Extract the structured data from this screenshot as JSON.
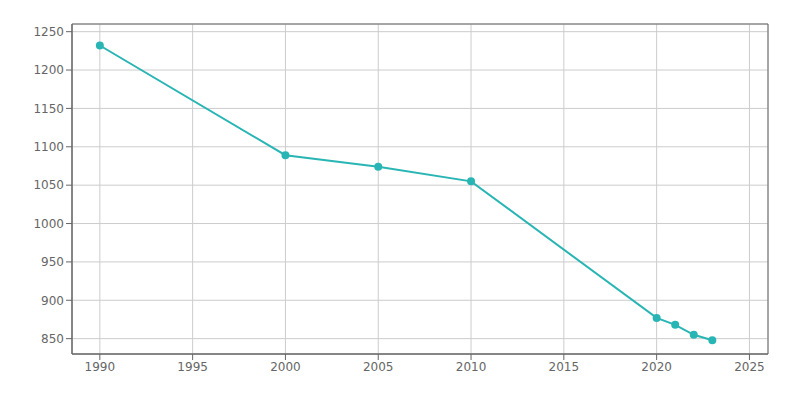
{
  "chart_data": {
    "type": "line",
    "x": [
      1990,
      2000,
      2005,
      2010,
      2020,
      2021,
      2022,
      2023
    ],
    "values": [
      1232,
      1089,
      1074,
      1055,
      877,
      868,
      855,
      848
    ],
    "color": "#2ab5b5",
    "marker": "circle",
    "xlim": [
      1988.5,
      2026
    ],
    "ylim": [
      830,
      1260
    ],
    "xticks": [
      1990,
      1995,
      2000,
      2005,
      2010,
      2015,
      2020,
      2025
    ],
    "yticks": [
      850,
      900,
      950,
      1000,
      1050,
      1100,
      1150,
      1200,
      1250
    ],
    "grid": true
  }
}
